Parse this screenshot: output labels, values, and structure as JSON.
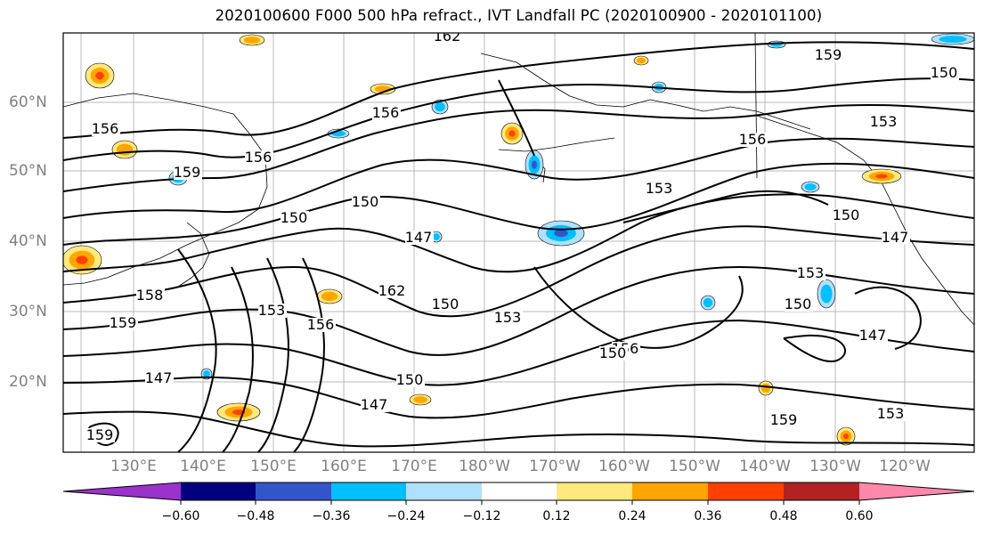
{
  "title": "2020100600 F000 500 hPa refract., IVT Landfall PC (2020100900 - 2020101100)",
  "lat_labels": [
    "60°N",
    "50°N",
    "40°N",
    "30°N",
    "20°N"
  ],
  "lon_labels": [
    "130°E",
    "140°E",
    "150°E",
    "160°E",
    "170°E",
    "180°W",
    "170°W",
    "160°W",
    "150°W",
    "140°W",
    "130°W",
    "120°W"
  ],
  "colorbar": {
    "colors": [
      "#9933cc",
      "#000080",
      "#3355cc",
      "#00bfff",
      "#b0e0ff",
      "#ffffff",
      "#ffe87c",
      "#ffa500",
      "#ff4000",
      "#b22222",
      "#ff88aa"
    ],
    "tick_labels": [
      "−0.60",
      "−0.48",
      "−0.36",
      "−0.24",
      "−0.12",
      "0.12",
      "0.24",
      "0.36",
      "0.48",
      "0.60"
    ]
  },
  "contour_labels": [
    "162",
    "159",
    "156",
    "153",
    "150",
    "147",
    "162",
    "159",
    "156",
    "156",
    "153",
    "150",
    "147",
    "153",
    "156",
    "158",
    "159",
    "156",
    "150",
    "153",
    "150",
    "150",
    "147",
    "153",
    "150",
    "147",
    "159",
    "156",
    "153",
    "150",
    "147",
    "159",
    "150"
  ]
}
